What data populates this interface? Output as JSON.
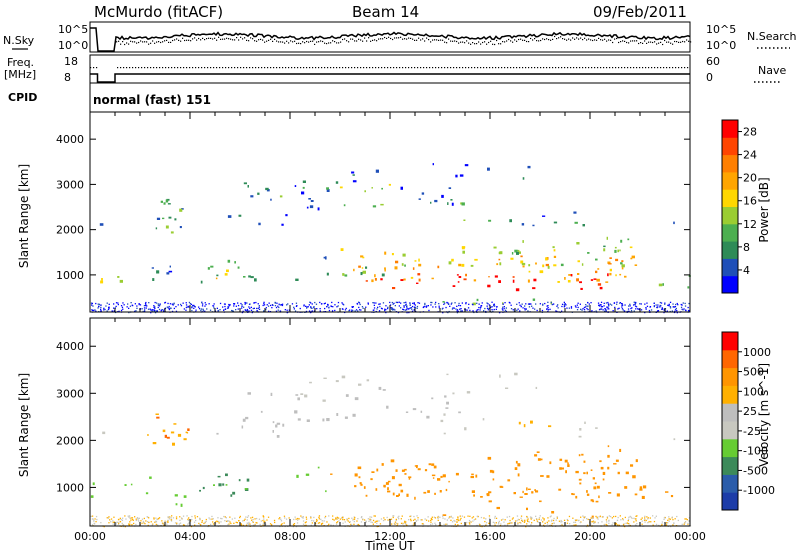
{
  "header": {
    "station": "McMurdo (fitACF)",
    "beam": "Beam 14",
    "date": "09/Feb/2011"
  },
  "top_panels": {
    "nsky_label": "N.Sky",
    "nsearch_label": "N.Search",
    "noise_tick_high": "10^5",
    "noise_tick_low": "10^0",
    "freq_label_line1": "Freq.",
    "freq_label_line2": "[MHz]",
    "freq_tick_high": "18",
    "freq_tick_low": "8",
    "nave_label": "Nave",
    "nave_tick_high": "60",
    "nave_tick_low": "0",
    "cpid_label": "CPID",
    "cpid_value": "normal (fast) 151"
  },
  "colors": {
    "power": [
      "#0000ff",
      "#1f4fb8",
      "#2e8b57",
      "#4caf50",
      "#9acd32",
      "#ffd700",
      "#ffa500",
      "#ff7f00",
      "#ff4500",
      "#ff0000"
    ],
    "velocity": [
      "#1c3ca8",
      "#2a5caa",
      "#3c8a5a",
      "#66cc33",
      "#c8c8c0",
      "#bebebe",
      "#ffb000",
      "#ff9500",
      "#ff6600",
      "#ff0000"
    ]
  },
  "chart_data": [
    {
      "type": "heatmap",
      "ylabel": "Slant Range [km]",
      "xlabel": "",
      "ylim": [
        180,
        4600
      ],
      "xlim": [
        0,
        24
      ],
      "y_ticks": [
        "1000",
        "2000",
        "3000",
        "4000"
      ],
      "x_ticks": [],
      "colorbar": {
        "label": "Power [dB]",
        "ticks": [
          "4",
          "8",
          "12",
          "16",
          "20",
          "24",
          "28"
        ],
        "range": [
          0,
          30
        ]
      }
    },
    {
      "type": "heatmap",
      "ylabel": "Slant Range [km]",
      "xlabel": "Time UT",
      "ylim": [
        180,
        4600
      ],
      "xlim": [
        0,
        24
      ],
      "y_ticks": [
        "1000",
        "2000",
        "3000",
        "4000"
      ],
      "x_ticks": [
        "00:00",
        "04:00",
        "08:00",
        "12:00",
        "16:00",
        "20:00",
        "00:00"
      ],
      "colorbar": {
        "label": "Velocity [m s^-1]",
        "ticks": [
          "1000",
          "500",
          "100",
          "25",
          "-25",
          "-100",
          "-500",
          "-1000"
        ]
      }
    }
  ]
}
